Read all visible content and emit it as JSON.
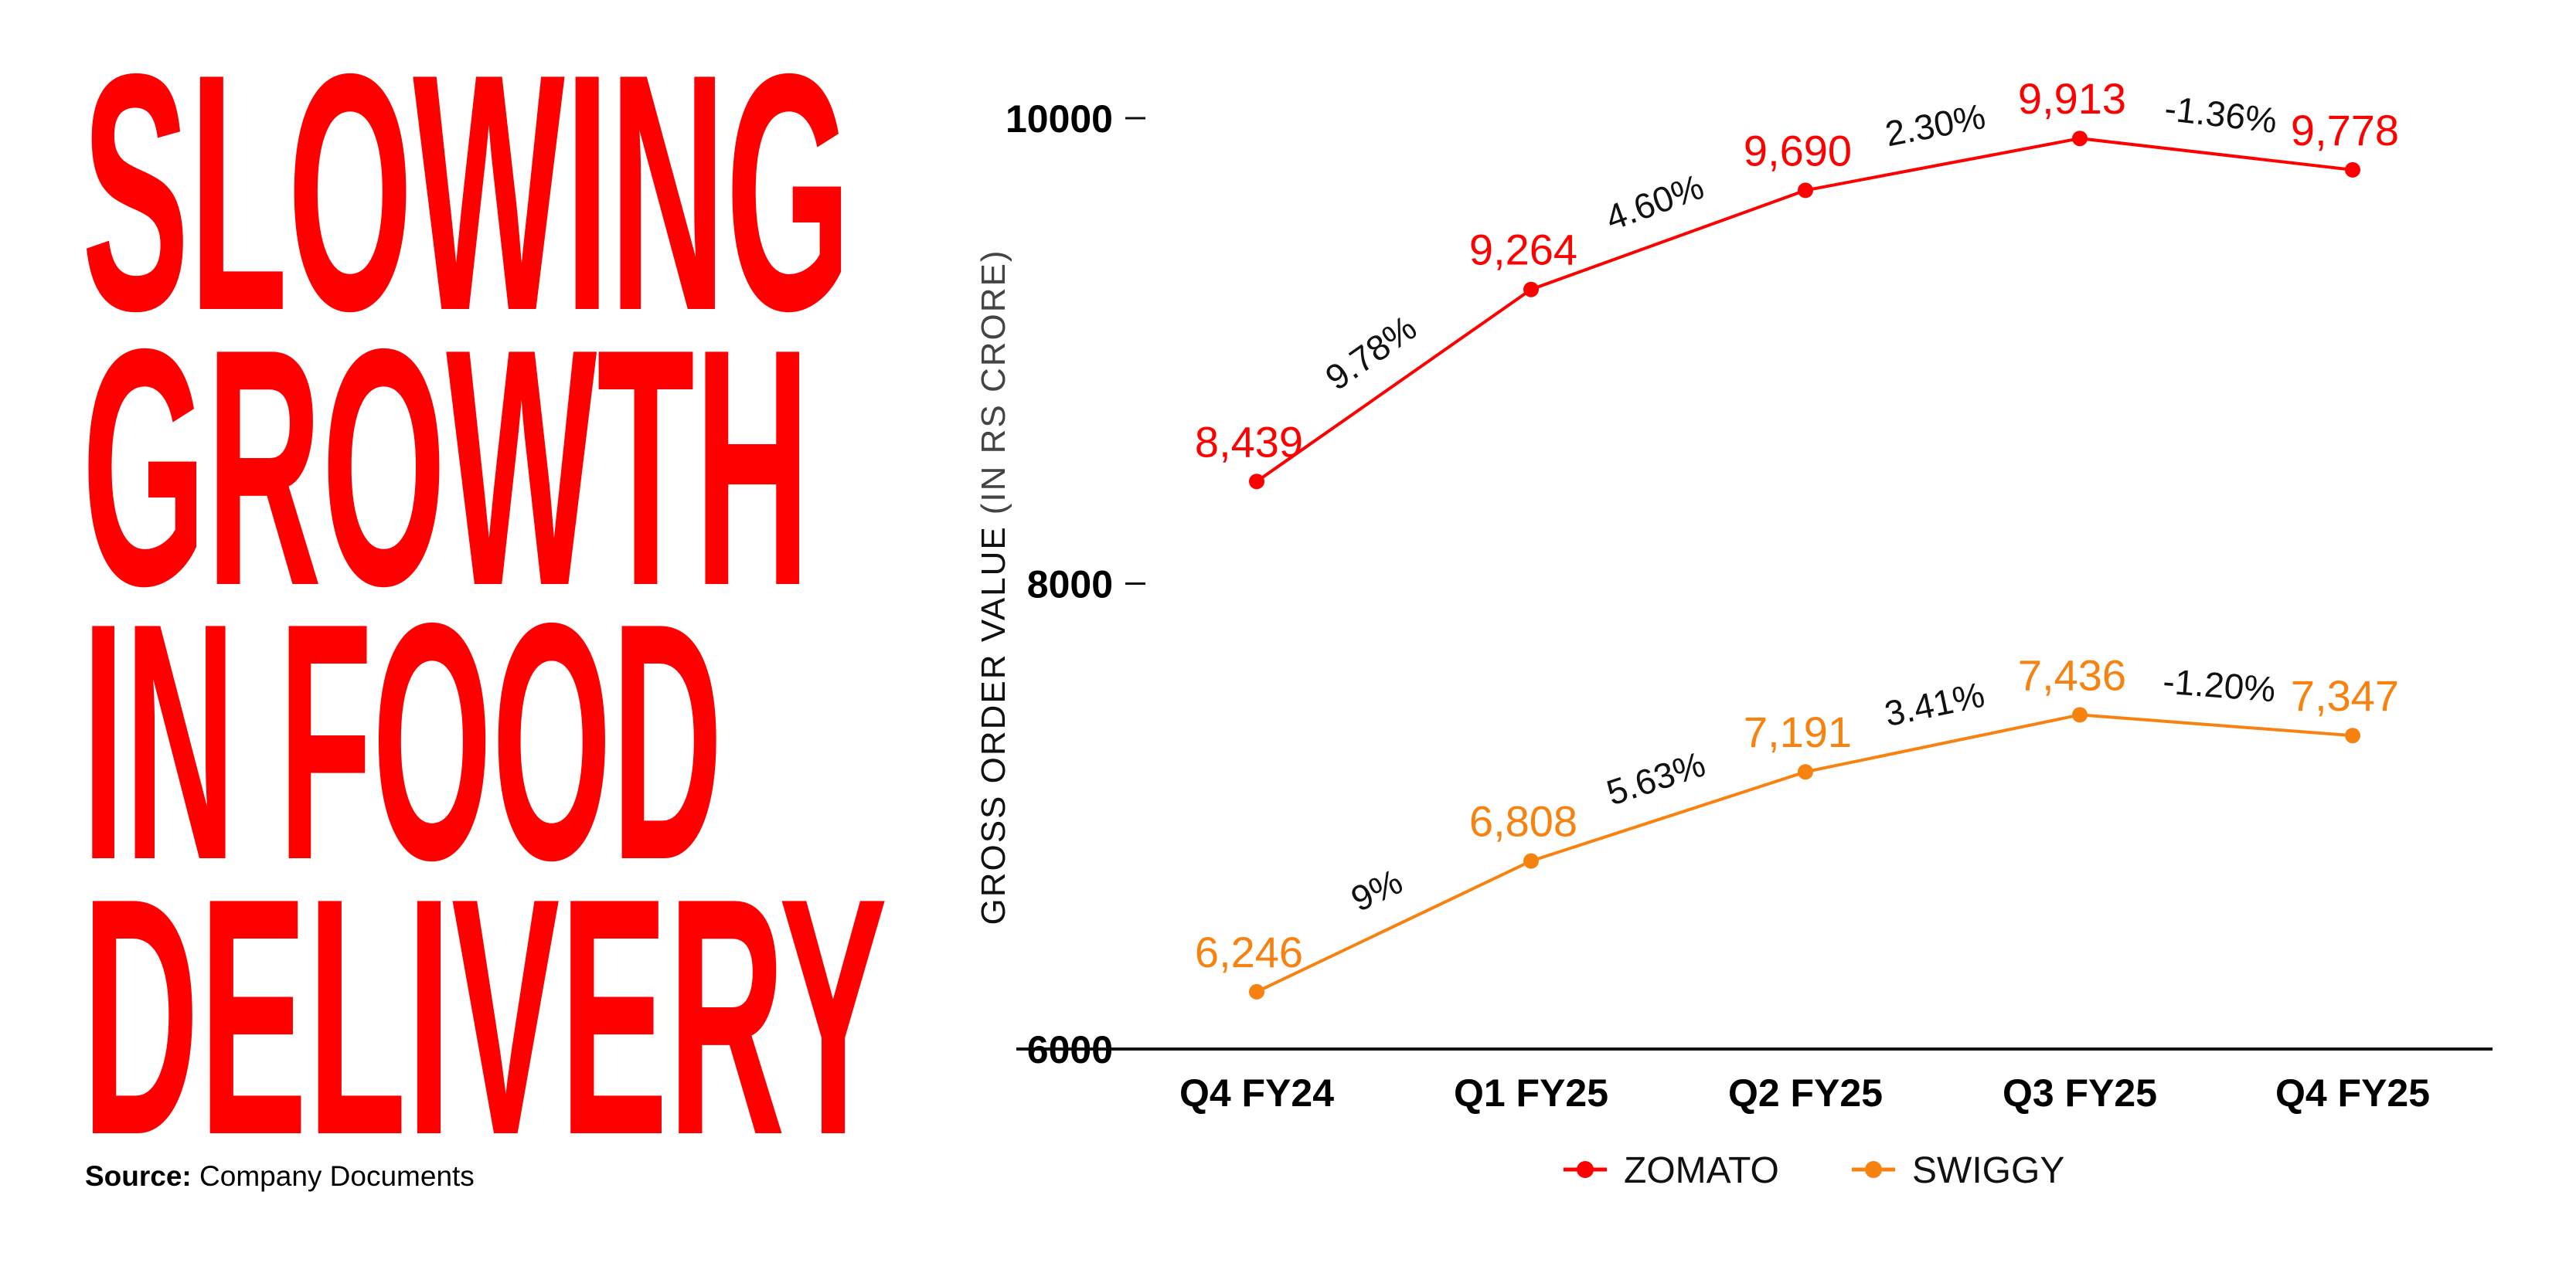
{
  "headline": [
    "SLOWING",
    "GROWTH",
    "IN FOOD",
    "DELIVERY"
  ],
  "source": {
    "label": "Source:",
    "text": "Company Documents"
  },
  "chart_data": {
    "type": "line",
    "categories": [
      "Q4 FY24",
      "Q1 FY25",
      "Q2 FY25",
      "Q3 FY25",
      "Q4 FY25"
    ],
    "ylabel": "GROSS ORDER VALUE",
    "ylabel_unit": "(IN RS CRORE)",
    "ylim": [
      6000,
      10000
    ],
    "yticks": [
      6000,
      8000,
      10000
    ],
    "grid": false,
    "legend": "bottom",
    "series": [
      {
        "name": "ZOMATO",
        "color": "#ff0000",
        "values": [
          8439,
          9264,
          9690,
          9913,
          9778
        ],
        "value_labels": [
          "8,439",
          "9,264",
          "9,690",
          "9,913",
          "9,778"
        ],
        "growth_labels": [
          "9.78%",
          "4.60%",
          "2.30%",
          "-1.36%"
        ]
      },
      {
        "name": "SWIGGY",
        "color": "#f7820f",
        "values": [
          6246,
          6808,
          7191,
          7436,
          7347
        ],
        "value_labels": [
          "6,246",
          "6,808",
          "7,191",
          "7,436",
          "7,347"
        ],
        "growth_labels": [
          "9%",
          "5.63%",
          "3.41%",
          "-1.20%"
        ]
      }
    ]
  }
}
